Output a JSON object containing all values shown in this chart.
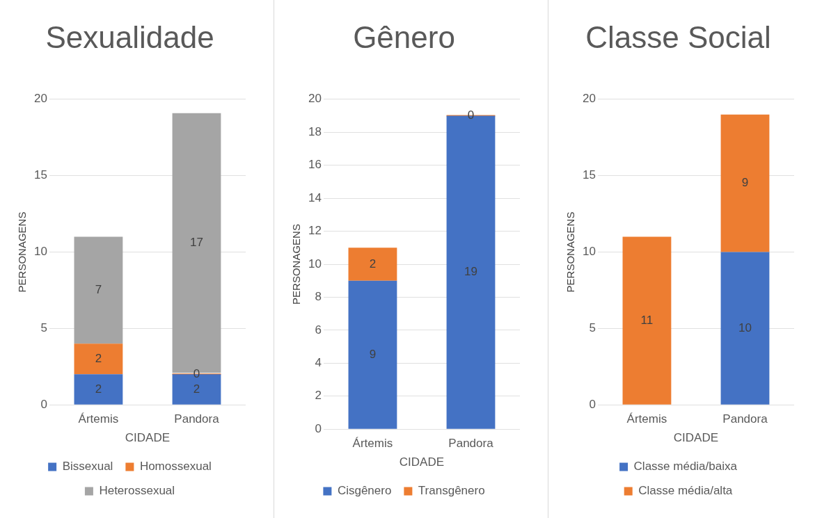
{
  "chart_data": [
    {
      "type": "bar",
      "title": "Sexualidade",
      "xlabel": "CIDADE",
      "ylabel": "PERSONAGENS",
      "categories": [
        "Ártemis",
        "Pandora"
      ],
      "stacked": true,
      "ylim": [
        0,
        20
      ],
      "yticks": [
        0,
        5,
        10,
        15,
        20
      ],
      "grid": "y",
      "legend": "bottom",
      "data_labels": true,
      "series": [
        {
          "name": "Bissexual",
          "color": "#4472c4",
          "values": [
            2,
            2
          ]
        },
        {
          "name": "Homossexual",
          "color": "#ed7d31",
          "values": [
            2,
            0
          ]
        },
        {
          "name": "Heterossexual",
          "color": "#a5a5a5",
          "values": [
            7,
            17
          ]
        }
      ]
    },
    {
      "type": "bar",
      "title": "Gênero",
      "xlabel": "CIDADE",
      "ylabel": "PERSONAGENS",
      "categories": [
        "Ártemis",
        "Pandora"
      ],
      "stacked": true,
      "ylim": [
        0,
        20
      ],
      "yticks": [
        0,
        2,
        4,
        6,
        8,
        10,
        12,
        14,
        16,
        18,
        20
      ],
      "grid": "y",
      "legend": "bottom",
      "data_labels": true,
      "series": [
        {
          "name": "Cisgênero",
          "color": "#4472c4",
          "values": [
            9,
            19
          ]
        },
        {
          "name": "Transgênero",
          "color": "#ed7d31",
          "values": [
            2,
            0
          ]
        }
      ]
    },
    {
      "type": "bar",
      "title": "Classe Social",
      "xlabel": "CIDADE",
      "ylabel": "PERSONAGENS",
      "categories": [
        "Ártemis",
        "Pandora"
      ],
      "stacked": true,
      "ylim": [
        0,
        20
      ],
      "yticks": [
        0,
        5,
        10,
        15,
        20
      ],
      "grid": "y",
      "legend": "bottom",
      "data_labels": true,
      "series": [
        {
          "name": "Classe média/baixa",
          "color": "#4472c4",
          "values": [
            null,
            10
          ]
        },
        {
          "name": "Classe média/alta",
          "color": "#ed7d31",
          "values": [
            11,
            9
          ]
        }
      ]
    }
  ]
}
